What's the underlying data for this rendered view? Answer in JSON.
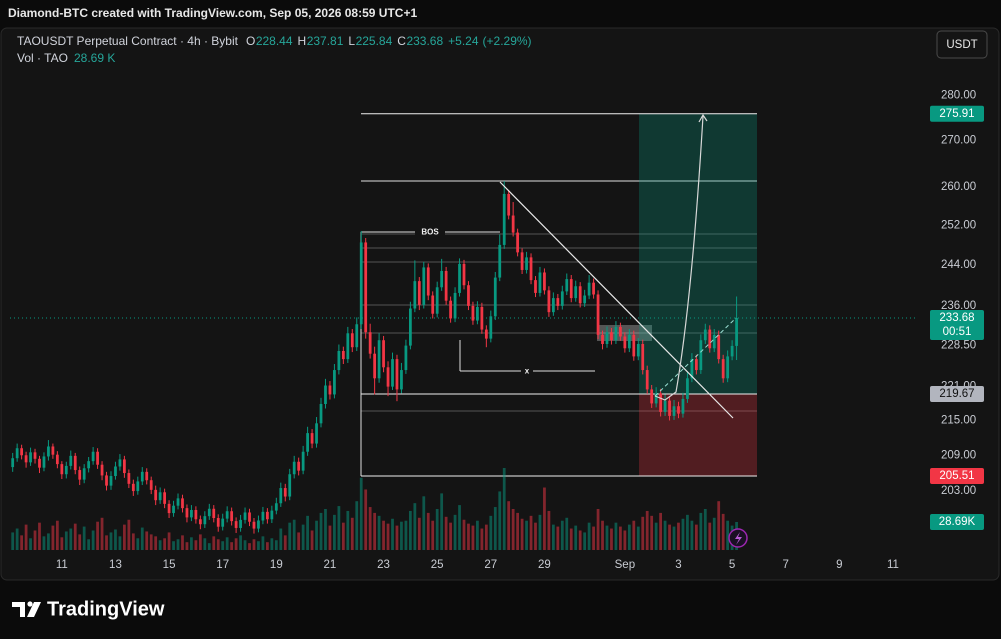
{
  "chart_data": {
    "type": "candlestick",
    "attribution": "Diamond-BTC created with TradingView.com, Sep 05, 2026 08:59 UTC+1",
    "symbol": "TAOUSDT Perpetual Contract · 4h · Bybit",
    "ohlc_labels": [
      "O",
      "H",
      "L",
      "C"
    ],
    "change": {
      "value": 5.24,
      "label": "+5.24"
    },
    "change_pct": {
      "value": 2.29,
      "label": "(+2.29%)"
    },
    "volume_title": "Vol · TAO",
    "volume_legend": "28.69 K",
    "volume_axis_label": "28.69K",
    "currency": "USDT",
    "countdown": "00:51",
    "logo": "TradingView",
    "annotations": [
      "BOS",
      "x"
    ],
    "up_color": "#089981",
    "down_color": "#f23645",
    "log_scale": true,
    "grid": false,
    "ylim": [
      193.5,
      297.3
    ],
    "yticks": [
      {
        "value": 280,
        "label": "280.00"
      },
      {
        "value": 270,
        "label": "270.00"
      },
      {
        "value": 260,
        "label": "260.00"
      },
      {
        "value": 252,
        "label": "252.00"
      },
      {
        "value": 244,
        "label": "244.00"
      },
      {
        "value": 236,
        "label": "236.00"
      },
      {
        "value": 228.5,
        "label": "228.50"
      },
      {
        "value": 221,
        "label": "221.00"
      },
      {
        "value": 215,
        "label": "215.00"
      },
      {
        "value": 209,
        "label": "209.00"
      },
      {
        "value": 203,
        "label": "203.00"
      }
    ],
    "xlim": [
      -0.6,
      202.6
    ],
    "xticks": [
      {
        "value": 11,
        "label": "11"
      },
      {
        "value": 23,
        "label": "13"
      },
      {
        "value": 35,
        "label": "15"
      },
      {
        "value": 47,
        "label": "17"
      },
      {
        "value": 59,
        "label": "19"
      },
      {
        "value": 71,
        "label": "21"
      },
      {
        "value": 83,
        "label": "23"
      },
      {
        "value": 95,
        "label": "25"
      },
      {
        "value": 107,
        "label": "27"
      },
      {
        "value": 119,
        "label": "29"
      },
      {
        "value": 137,
        "label": "Sep"
      },
      {
        "value": 149,
        "label": "3"
      },
      {
        "value": 161,
        "label": "5"
      },
      {
        "value": 173,
        "label": "7"
      },
      {
        "value": 185,
        "label": "9"
      },
      {
        "value": 197,
        "label": "11"
      }
    ],
    "position": {
      "target": 275.91,
      "entry": 219.67,
      "stop": 205.51
    },
    "ohlc": [
      [
        207.0,
        209.4,
        206.2,
        208.5
      ],
      [
        208.5,
        211.0,
        207.9,
        210.2
      ],
      [
        210.2,
        210.8,
        208.3,
        209.0
      ],
      [
        209.0,
        209.6,
        206.9,
        207.8
      ],
      [
        207.8,
        210.3,
        207.2,
        209.5
      ],
      [
        209.5,
        210.1,
        207.6,
        208.4
      ],
      [
        208.4,
        208.9,
        206.0,
        206.9
      ],
      [
        206.9,
        209.5,
        206.3,
        208.8
      ],
      [
        208.8,
        211.6,
        208.1,
        210.5
      ],
      [
        210.5,
        211.0,
        208.4,
        209.1
      ],
      [
        209.1,
        209.7,
        206.8,
        207.5
      ],
      [
        207.5,
        208.0,
        205.0,
        205.8
      ],
      [
        205.8,
        207.9,
        205.1,
        207.2
      ],
      [
        207.2,
        209.8,
        206.6,
        208.9
      ],
      [
        208.9,
        209.4,
        205.8,
        206.5
      ],
      [
        206.5,
        207.1,
        204.0,
        204.9
      ],
      [
        204.9,
        207.5,
        204.3,
        206.8
      ],
      [
        206.8,
        208.7,
        206.1,
        208.0
      ],
      [
        208.0,
        210.4,
        207.4,
        209.6
      ],
      [
        209.6,
        210.2,
        206.7,
        207.4
      ],
      [
        207.4,
        208.0,
        204.8,
        205.6
      ],
      [
        205.6,
        206.2,
        203.1,
        203.9
      ],
      [
        203.9,
        206.3,
        203.2,
        205.5
      ],
      [
        205.5,
        207.9,
        204.9,
        207.1
      ],
      [
        207.1,
        209.2,
        206.4,
        208.3
      ],
      [
        208.3,
        208.9,
        205.2,
        206.0
      ],
      [
        206.0,
        206.6,
        203.5,
        204.2
      ],
      [
        204.2,
        204.9,
        202.2,
        203.0
      ],
      [
        203.0,
        205.4,
        202.4,
        204.6
      ],
      [
        204.6,
        207.0,
        204.0,
        206.2
      ],
      [
        206.2,
        206.8,
        204.1,
        204.8
      ],
      [
        204.8,
        205.4,
        202.5,
        203.2
      ],
      [
        203.2,
        203.9,
        200.7,
        201.5
      ],
      [
        201.5,
        203.6,
        200.9,
        202.8
      ],
      [
        202.8,
        203.4,
        200.2,
        200.9
      ],
      [
        200.9,
        201.5,
        198.6,
        199.4
      ],
      [
        199.4,
        201.4,
        198.8,
        200.6
      ],
      [
        200.6,
        202.6,
        200.0,
        201.8
      ],
      [
        201.8,
        202.4,
        199.5,
        200.2
      ],
      [
        200.2,
        200.8,
        197.9,
        198.7
      ],
      [
        198.7,
        200.7,
        198.1,
        199.9
      ],
      [
        199.9,
        200.5,
        197.7,
        198.4
      ],
      [
        198.4,
        199.0,
        196.8,
        197.6
      ],
      [
        197.6,
        199.7,
        197.0,
        198.9
      ],
      [
        198.9,
        200.9,
        198.3,
        200.1
      ],
      [
        200.1,
        200.7,
        197.9,
        198.6
      ],
      [
        198.6,
        199.2,
        196.4,
        197.2
      ],
      [
        197.2,
        199.3,
        196.6,
        198.5
      ],
      [
        198.5,
        200.5,
        197.9,
        199.7
      ],
      [
        199.7,
        200.3,
        197.4,
        198.1
      ],
      [
        198.1,
        198.7,
        196.2,
        197.0
      ],
      [
        197.0,
        199.1,
        196.4,
        198.3
      ],
      [
        198.3,
        200.3,
        197.7,
        199.5
      ],
      [
        199.5,
        200.1,
        197.3,
        198.0
      ],
      [
        198.0,
        198.6,
        196.1,
        196.9
      ],
      [
        196.9,
        199.0,
        196.3,
        198.2
      ],
      [
        198.2,
        200.4,
        197.6,
        199.6
      ],
      [
        199.6,
        200.2,
        197.7,
        198.4
      ],
      [
        198.4,
        200.6,
        197.8,
        199.8
      ],
      [
        199.8,
        201.9,
        199.2,
        201.0
      ],
      [
        201.0,
        204.4,
        200.4,
        203.5
      ],
      [
        203.5,
        204.2,
        201.3,
        202.1
      ],
      [
        202.1,
        206.7,
        201.5,
        205.8
      ],
      [
        205.8,
        208.9,
        205.1,
        207.9
      ],
      [
        207.9,
        208.6,
        205.6,
        206.4
      ],
      [
        206.4,
        210.6,
        205.8,
        209.6
      ],
      [
        209.6,
        213.9,
        208.9,
        212.8
      ],
      [
        212.8,
        213.5,
        210.2,
        211.0
      ],
      [
        211.0,
        215.6,
        210.3,
        214.5
      ],
      [
        214.5,
        219.0,
        213.8,
        217.9
      ],
      [
        217.9,
        222.4,
        217.1,
        221.2
      ],
      [
        221.2,
        222.0,
        218.7,
        219.6
      ],
      [
        219.6,
        225.1,
        218.9,
        224.0
      ],
      [
        224.0,
        228.7,
        223.2,
        227.5
      ],
      [
        227.5,
        228.3,
        225.1,
        226.0
      ],
      [
        226.0,
        232.0,
        225.3,
        230.8
      ],
      [
        230.8,
        231.6,
        227.3,
        228.2
      ],
      [
        228.2,
        233.8,
        227.5,
        232.5
      ],
      [
        232.5,
        250.8,
        231.6,
        248.5
      ],
      [
        248.5,
        249.4,
        229.8,
        231.0
      ],
      [
        231.0,
        232.6,
        226.1,
        227.0
      ],
      [
        227.0,
        228.3,
        219.6,
        222.5
      ],
      [
        222.5,
        230.8,
        221.7,
        229.5
      ],
      [
        229.5,
        230.3,
        223.6,
        224.5
      ],
      [
        224.5,
        225.6,
        219.3,
        221.0
      ],
      [
        221.0,
        227.2,
        220.4,
        226.0
      ],
      [
        226.0,
        226.8,
        218.4,
        220.5
      ],
      [
        220.5,
        225.3,
        219.8,
        224.0
      ],
      [
        224.0,
        229.6,
        223.3,
        228.5
      ],
      [
        228.5,
        236.8,
        227.8,
        235.5
      ],
      [
        235.5,
        244.9,
        234.8,
        240.8
      ],
      [
        240.8,
        241.6,
        235.2,
        236.2
      ],
      [
        236.2,
        244.6,
        235.5,
        243.5
      ],
      [
        243.5,
        244.3,
        237.1,
        238.0
      ],
      [
        238.0,
        238.8,
        233.6,
        234.5
      ],
      [
        234.5,
        240.7,
        233.8,
        239.6
      ],
      [
        239.6,
        245.2,
        238.9,
        242.8
      ],
      [
        242.8,
        243.6,
        236.2,
        237.0
      ],
      [
        237.0,
        237.8,
        232.8,
        233.6
      ],
      [
        233.6,
        239.6,
        232.9,
        238.5
      ],
      [
        238.5,
        245.3,
        237.8,
        244.2
      ],
      [
        244.2,
        245.0,
        239.2,
        240.0
      ],
      [
        240.0,
        240.8,
        235.2,
        236.0
      ],
      [
        236.0,
        236.8,
        232.4,
        233.2
      ],
      [
        233.2,
        236.9,
        232.5,
        235.8
      ],
      [
        235.8,
        236.6,
        230.7,
        231.5
      ],
      [
        231.5,
        232.3,
        228.2,
        229.8
      ],
      [
        229.8,
        235.1,
        229.1,
        234.0
      ],
      [
        234.0,
        242.6,
        233.3,
        241.5
      ],
      [
        241.5,
        250.1,
        240.8,
        248.0
      ],
      [
        248.0,
        261.2,
        247.2,
        258.5
      ],
      [
        258.5,
        259.3,
        253.2,
        254.0
      ],
      [
        254.0,
        256.8,
        249.7,
        250.5
      ],
      [
        250.5,
        251.3,
        245.7,
        246.5
      ],
      [
        246.5,
        247.3,
        242.2,
        243.0
      ],
      [
        243.0,
        246.6,
        242.3,
        245.5
      ],
      [
        245.5,
        246.3,
        240.2,
        241.0
      ],
      [
        241.0,
        241.8,
        237.7,
        238.5
      ],
      [
        238.5,
        243.6,
        237.8,
        242.5
      ],
      [
        242.5,
        243.3,
        238.2,
        239.0
      ],
      [
        239.0,
        239.8,
        233.9,
        234.8
      ],
      [
        234.8,
        238.6,
        234.1,
        237.5
      ],
      [
        237.5,
        238.3,
        235.2,
        236.0
      ],
      [
        236.0,
        239.9,
        235.3,
        238.8
      ],
      [
        238.8,
        242.3,
        238.1,
        241.2
      ],
      [
        241.2,
        242.0,
        236.7,
        237.5
      ],
      [
        237.5,
        240.9,
        236.8,
        239.8
      ],
      [
        239.8,
        240.6,
        235.7,
        236.5
      ],
      [
        236.5,
        239.1,
        235.8,
        238.0
      ],
      [
        238.0,
        242.0,
        237.3,
        240.5
      ],
      [
        240.5,
        241.3,
        237.4,
        238.2
      ],
      [
        238.2,
        239.0,
        229.7,
        230.5
      ],
      [
        230.5,
        231.3,
        227.8,
        228.8
      ],
      [
        228.8,
        232.1,
        228.1,
        231.0
      ],
      [
        231.0,
        231.8,
        228.7,
        229.5
      ],
      [
        229.5,
        233.1,
        228.8,
        232.0
      ],
      [
        232.0,
        232.8,
        229.4,
        230.2
      ],
      [
        230.2,
        231.0,
        227.2,
        228.0
      ],
      [
        228.0,
        231.6,
        227.3,
        230.5
      ],
      [
        230.5,
        231.3,
        225.7,
        226.5
      ],
      [
        226.5,
        229.9,
        225.8,
        228.8
      ],
      [
        228.8,
        229.6,
        223.2,
        224.0
      ],
      [
        224.0,
        224.8,
        219.7,
        220.5
      ],
      [
        220.5,
        221.3,
        217.2,
        218.0
      ],
      [
        218.0,
        220.9,
        217.3,
        219.8
      ],
      [
        219.8,
        220.6,
        215.7,
        216.5
      ],
      [
        216.5,
        219.6,
        215.8,
        218.5
      ],
      [
        218.5,
        219.3,
        215.0,
        215.8
      ],
      [
        215.8,
        218.6,
        215.1,
        217.5
      ],
      [
        217.5,
        218.3,
        215.4,
        216.2
      ],
      [
        216.2,
        219.9,
        215.5,
        218.8
      ],
      [
        218.8,
        223.6,
        218.1,
        222.5
      ],
      [
        222.5,
        227.1,
        221.8,
        226.0
      ],
      [
        226.0,
        226.8,
        223.2,
        224.0
      ],
      [
        224.0,
        230.6,
        223.3,
        229.5
      ],
      [
        229.5,
        232.6,
        228.8,
        231.5
      ],
      [
        231.5,
        232.3,
        227.2,
        228.0
      ],
      [
        228.0,
        231.6,
        227.3,
        230.5
      ],
      [
        230.5,
        231.3,
        225.2,
        226.0
      ],
      [
        226.0,
        226.8,
        221.7,
        222.5
      ],
      [
        222.5,
        227.6,
        221.8,
        226.5
      ],
      [
        226.5,
        229.5,
        225.8,
        228.44
      ],
      [
        228.44,
        237.81,
        225.84,
        233.68
      ]
    ],
    "volume": [
      18,
      22,
      15,
      26,
      12,
      20,
      28,
      14,
      17,
      25,
      30,
      13,
      19,
      22,
      27,
      16,
      24,
      11,
      20,
      29,
      33,
      15,
      18,
      21,
      14,
      26,
      31,
      17,
      12,
      23,
      19,
      16,
      14,
      10,
      12,
      18,
      9,
      11,
      15,
      8,
      13,
      10,
      16,
      12,
      7,
      14,
      11,
      9,
      13,
      8,
      12,
      15,
      10,
      7,
      11,
      9,
      14,
      8,
      12,
      10,
      22,
      15,
      28,
      31,
      18,
      26,
      35,
      20,
      30,
      38,
      42,
      25,
      36,
      45,
      28,
      40,
      33,
      50,
      74,
      62,
      44,
      38,
      35,
      30,
      27,
      32,
      25,
      29,
      30,
      40,
      48,
      33,
      55,
      38,
      30,
      42,
      58,
      34,
      28,
      36,
      46,
      31,
      27,
      25,
      30,
      22,
      26,
      35,
      44,
      60,
      84,
      50,
      42,
      38,
      32,
      30,
      35,
      28,
      36,
      64,
      40,
      26,
      24,
      30,
      33,
      22,
      25,
      20,
      18,
      28,
      24,
      42,
      30,
      25,
      22,
      28,
      24,
      20,
      26,
      30,
      24,
      34,
      40,
      35,
      28,
      38,
      30,
      26,
      24,
      28,
      32,
      36,
      30,
      26,
      38,
      42,
      28,
      33,
      50,
      37,
      30,
      25,
      28.69
    ]
  }
}
